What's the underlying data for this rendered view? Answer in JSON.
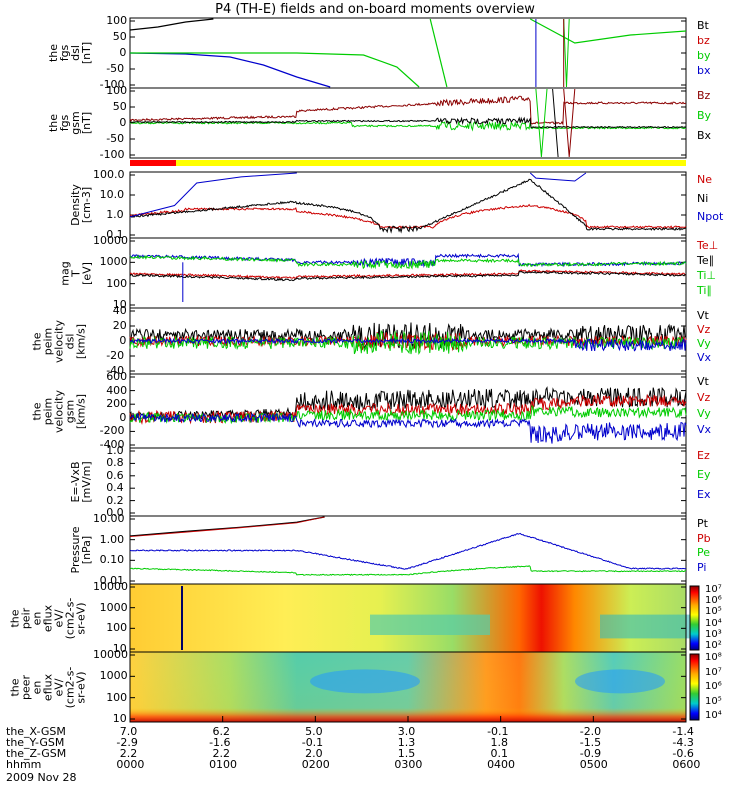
{
  "title": "P4 (TH-E) fields and on-board moments overview",
  "date": "2009 Nov 28",
  "colors": {
    "black": "#000000",
    "red": "#cc0000",
    "green": "#00cc00",
    "blue": "#0000cc",
    "darkred": "#8b0000",
    "yellow": "#ffff00",
    "bar_red": "#ff0000"
  },
  "panels": [
    {
      "id": "fgs_dsl",
      "ylabel": [
        "the",
        "fgs",
        "dsl",
        "[nT]"
      ],
      "ticks": [
        "100",
        "50",
        "0",
        "-50",
        "-100"
      ],
      "legend": [
        {
          "t": "Bt",
          "c": "#000000"
        },
        {
          "t": "bz",
          "c": "#cc0000"
        },
        {
          "t": "by",
          "c": "#00cc00"
        },
        {
          "t": "bx",
          "c": "#0000cc"
        }
      ]
    },
    {
      "id": "fgs_gsm",
      "ylabel": [
        "the",
        "fgs",
        "gsm",
        "[nT]"
      ],
      "ticks": [
        "100",
        "50",
        "0",
        "-50",
        "-100"
      ],
      "legend": [
        {
          "t": "Bz",
          "c": "#8b0000"
        },
        {
          "t": "By",
          "c": "#00cc00"
        },
        {
          "t": "Bx",
          "c": "#000000"
        }
      ]
    },
    {
      "id": "density",
      "ylabel": [
        "Density",
        "[cm-3]"
      ],
      "ticks": [
        "100.0",
        "10.0",
        "1.0",
        "0.1"
      ],
      "legend": [
        {
          "t": "Ne",
          "c": "#cc0000"
        },
        {
          "t": "Ni",
          "c": "#000000"
        },
        {
          "t": "Npot",
          "c": "#0000cc"
        }
      ]
    },
    {
      "id": "temp",
      "ylabel": [
        "mag",
        "T",
        "[eV]"
      ],
      "ticks": [
        "10000",
        "1000",
        "100",
        "10"
      ],
      "legend": [
        {
          "t": "Te⊥",
          "c": "#cc0000"
        },
        {
          "t": "Te∥",
          "c": "#000000"
        },
        {
          "t": "Ti⊥",
          "c": "#00cc00"
        },
        {
          "t": "Ti∥",
          "c": "#00cc00"
        }
      ]
    },
    {
      "id": "vel_dsl",
      "ylabel": [
        "the",
        "peim",
        "velocity",
        "dsl",
        "[km/s]"
      ],
      "ticks": [
        "40",
        "20",
        "0",
        "-20",
        "-40"
      ],
      "legend": [
        {
          "t": "Vt",
          "c": "#000000"
        },
        {
          "t": "Vz",
          "c": "#cc0000"
        },
        {
          "t": "Vy",
          "c": "#00cc00"
        },
        {
          "t": "Vx",
          "c": "#0000cc"
        }
      ]
    },
    {
      "id": "vel_gsm",
      "ylabel": [
        "the",
        "peim",
        "velocity",
        "gsm",
        "[km/s]"
      ],
      "ticks": [
        "600",
        "400",
        "200",
        "0",
        "-200",
        "-400"
      ],
      "legend": [
        {
          "t": "Vt",
          "c": "#000000"
        },
        {
          "t": "Vz",
          "c": "#cc0000"
        },
        {
          "t": "Vy",
          "c": "#00cc00"
        },
        {
          "t": "Vx",
          "c": "#0000cc"
        }
      ]
    },
    {
      "id": "efield",
      "ylabel": [
        "E=-VxB",
        "[mV/m]"
      ],
      "ticks": [
        "1.0",
        "0.8",
        "0.6",
        "0.4",
        "0.2",
        "0.0"
      ],
      "legend": [
        {
          "t": "Ez",
          "c": "#cc0000"
        },
        {
          "t": "Ey",
          "c": "#00cc00"
        },
        {
          "t": "Ex",
          "c": "#0000cc"
        }
      ]
    },
    {
      "id": "pressure",
      "ylabel": [
        "Pressure",
        "[nPa]"
      ],
      "ticks": [
        "10.00",
        "1.00",
        "0.10",
        "0.01"
      ],
      "legend": [
        {
          "t": "Pt",
          "c": "#000000"
        },
        {
          "t": "Pb",
          "c": "#cc0000"
        },
        {
          "t": "Pe",
          "c": "#00cc00"
        },
        {
          "t": "Pi",
          "c": "#0000cc"
        }
      ]
    },
    {
      "id": "ion_spec",
      "ylabel": [
        "the",
        "peir",
        "en",
        "eflux",
        "eV/",
        "(cm2-s-",
        "sr-eV)"
      ],
      "ticks": [
        "10000",
        "1000",
        "100",
        "10"
      ],
      "cbar": [
        "10⁷",
        "10⁶",
        "10⁵",
        "10⁴",
        "10³",
        "10²"
      ]
    },
    {
      "id": "ele_spec",
      "ylabel": [
        "the",
        "peer",
        "en",
        "eflux",
        "eV/",
        "(cm2-s-",
        "sr-eV)"
      ],
      "ticks": [
        "10000",
        "1000",
        "100",
        "10"
      ],
      "cbar": [
        "10⁸",
        "10⁷",
        "10⁶",
        "10⁵",
        "10⁴"
      ]
    }
  ],
  "x_axis": {
    "rows": [
      {
        "label": "the_X-GSM",
        "values": [
          "7.0",
          "6.2",
          "5.0",
          "3.0",
          "-0.1",
          "-2.0",
          "-1.4"
        ]
      },
      {
        "label": "the_Y-GSM",
        "values": [
          "-2.9",
          "-1.6",
          "-0.1",
          "1.3",
          "1.8",
          "-1.5",
          "-4.3"
        ]
      },
      {
        "label": "the_Z-GSM",
        "values": [
          "2.2",
          "2.2",
          "2.0",
          "1.5",
          "0.1",
          "-0.9",
          "-0.6"
        ]
      },
      {
        "label": "hhmm",
        "values": [
          "0000",
          "0100",
          "0200",
          "0300",
          "0400",
          "0500",
          "0600"
        ]
      }
    ]
  },
  "chart_data": {
    "type": "line",
    "title": "P4 (TH-E) fields and on-board moments overview",
    "x": [
      "0000",
      "0100",
      "0200",
      "0300",
      "0400",
      "0500",
      "0600"
    ],
    "xlabel": "hhmm",
    "series": [
      {
        "name": "Ni",
        "values": [
          0.8,
          4.0,
          4.0,
          0.2,
          60,
          0.3,
          0.2
        ]
      },
      {
        "name": "Ne",
        "values": [
          0.8,
          2.0,
          1.5,
          0.2,
          3.0,
          0.7,
          0.2
        ]
      },
      {
        "name": "Pi",
        "values": [
          0.3,
          0.3,
          0.15,
          0.04,
          2.0,
          0.05,
          0.03
        ]
      },
      {
        "name": "Pe",
        "values": [
          0.04,
          0.03,
          0.015,
          0.02,
          0.05,
          0.03,
          0.03
        ]
      },
      {
        "name": "Vt",
        "values": [
          20,
          30,
          230,
          280,
          280,
          350,
          350
        ]
      }
    ]
  }
}
